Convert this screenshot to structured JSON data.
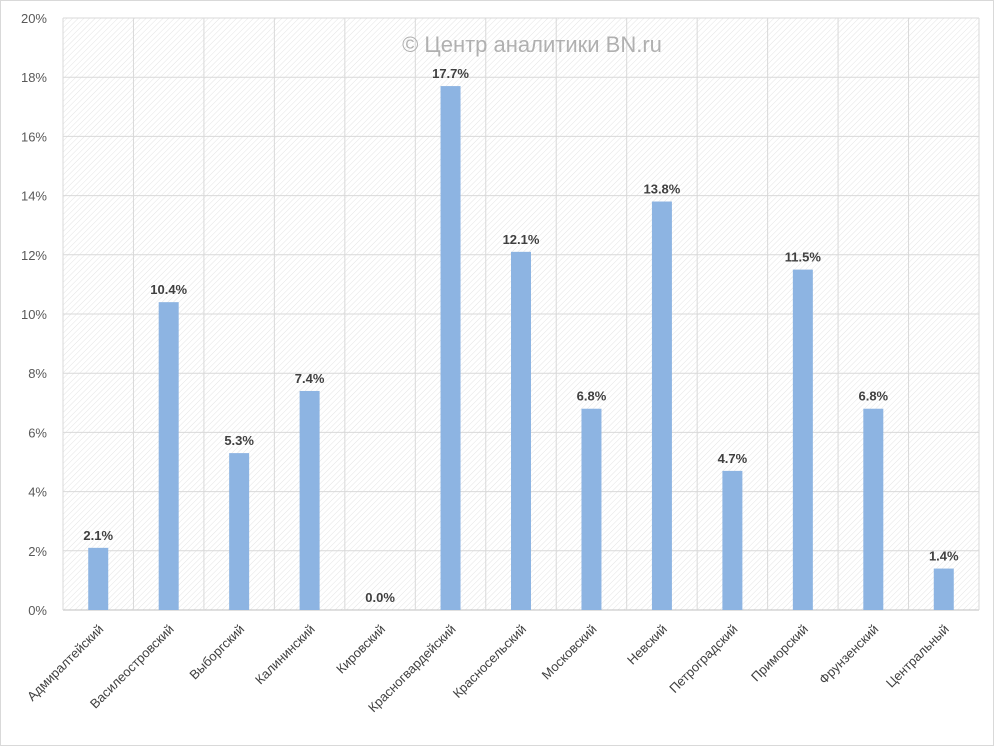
{
  "chart_data": {
    "type": "bar",
    "watermark": "© Центр аналитики BN.ru",
    "categories": [
      "Адмиралтейский",
      "Василеостровский",
      "Выборгский",
      "Калининский",
      "Кировский",
      "Красногвардейский",
      "Красносельский",
      "Московский",
      "Невский",
      "Петроградский",
      "Приморский",
      "Фрунзенский",
      "Центральный"
    ],
    "values": [
      2.1,
      10.4,
      5.3,
      7.4,
      0.0,
      17.7,
      12.1,
      6.8,
      13.8,
      4.7,
      11.5,
      6.8,
      1.4
    ],
    "data_labels": [
      "2.1%",
      "10.4%",
      "5.3%",
      "7.4%",
      "0.0%",
      "17.7%",
      "12.1%",
      "6.8%",
      "13.8%",
      "4.7%",
      "11.5%",
      "6.8%",
      "1.4%"
    ],
    "y_ticks": [
      "0%",
      "2%",
      "4%",
      "6%",
      "8%",
      "10%",
      "12%",
      "14%",
      "16%",
      "18%",
      "20%"
    ],
    "ylim": [
      0,
      20
    ],
    "xlabel": "",
    "ylabel": "",
    "grid": true,
    "legend": "none",
    "bar_color": "#8DB4E2"
  }
}
